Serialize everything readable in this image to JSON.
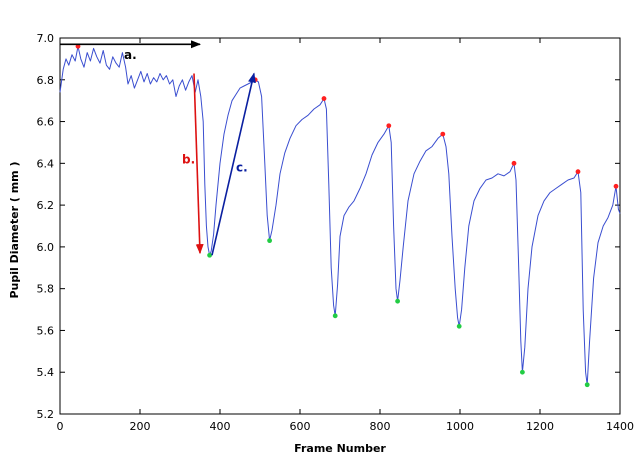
{
  "chart_data": {
    "type": "line",
    "title": "",
    "xlabel": "Frame Number",
    "ylabel": "Pupil Diameter  ( mm )",
    "xlim": [
      0,
      1400
    ],
    "ylim": [
      5.2,
      7.0
    ],
    "xticks": [
      0,
      200,
      400,
      600,
      800,
      1000,
      1200,
      1400
    ],
    "yticks": [
      5.2,
      5.4,
      5.6,
      5.8,
      6.0,
      6.2,
      6.4,
      6.6,
      6.8,
      7.0
    ],
    "grid": false,
    "line_color": "#3a4ed0",
    "series": [
      {
        "points": [
          [
            0,
            6.74
          ],
          [
            8,
            6.85
          ],
          [
            15,
            6.9
          ],
          [
            22,
            6.87
          ],
          [
            30,
            6.92
          ],
          [
            38,
            6.89
          ],
          [
            45,
            6.96
          ],
          [
            52,
            6.9
          ],
          [
            60,
            6.86
          ],
          [
            68,
            6.93
          ],
          [
            76,
            6.89
          ],
          [
            84,
            6.95
          ],
          [
            92,
            6.91
          ],
          [
            100,
            6.88
          ],
          [
            108,
            6.94
          ],
          [
            116,
            6.87
          ],
          [
            124,
            6.85
          ],
          [
            132,
            6.91
          ],
          [
            140,
            6.88
          ],
          [
            148,
            6.86
          ],
          [
            156,
            6.93
          ],
          [
            164,
            6.86
          ],
          [
            170,
            6.78
          ],
          [
            178,
            6.82
          ],
          [
            186,
            6.76
          ],
          [
            194,
            6.8
          ],
          [
            202,
            6.84
          ],
          [
            210,
            6.79
          ],
          [
            218,
            6.83
          ],
          [
            226,
            6.78
          ],
          [
            234,
            6.81
          ],
          [
            242,
            6.79
          ],
          [
            250,
            6.83
          ],
          [
            258,
            6.8
          ],
          [
            266,
            6.82
          ],
          [
            274,
            6.78
          ],
          [
            282,
            6.8
          ],
          [
            290,
            6.72
          ],
          [
            298,
            6.77
          ],
          [
            306,
            6.8
          ],
          [
            314,
            6.75
          ],
          [
            322,
            6.79
          ],
          [
            330,
            6.82
          ],
          [
            338,
            6.74
          ],
          [
            345,
            6.8
          ],
          [
            352,
            6.72
          ],
          [
            358,
            6.6
          ],
          [
            362,
            6.3
          ],
          [
            366,
            6.1
          ],
          [
            370,
            6.0
          ],
          [
            374,
            5.96
          ],
          [
            378,
            5.98
          ],
          [
            384,
            6.06
          ],
          [
            390,
            6.2
          ],
          [
            400,
            6.4
          ],
          [
            410,
            6.54
          ],
          [
            420,
            6.63
          ],
          [
            430,
            6.7
          ],
          [
            440,
            6.73
          ],
          [
            450,
            6.76
          ],
          [
            460,
            6.77
          ],
          [
            470,
            6.78
          ],
          [
            480,
            6.79
          ],
          [
            488,
            6.8
          ],
          [
            496,
            6.79
          ],
          [
            504,
            6.72
          ],
          [
            512,
            6.4
          ],
          [
            518,
            6.15
          ],
          [
            524,
            6.03
          ],
          [
            530,
            6.08
          ],
          [
            540,
            6.2
          ],
          [
            550,
            6.35
          ],
          [
            562,
            6.45
          ],
          [
            575,
            6.52
          ],
          [
            590,
            6.58
          ],
          [
            605,
            6.61
          ],
          [
            620,
            6.63
          ],
          [
            635,
            6.66
          ],
          [
            650,
            6.68
          ],
          [
            660,
            6.71
          ],
          [
            666,
            6.66
          ],
          [
            672,
            6.3
          ],
          [
            678,
            5.9
          ],
          [
            684,
            5.72
          ],
          [
            688,
            5.67
          ],
          [
            694,
            5.82
          ],
          [
            700,
            6.05
          ],
          [
            710,
            6.15
          ],
          [
            722,
            6.19
          ],
          [
            735,
            6.22
          ],
          [
            750,
            6.28
          ],
          [
            765,
            6.35
          ],
          [
            780,
            6.44
          ],
          [
            795,
            6.5
          ],
          [
            810,
            6.54
          ],
          [
            822,
            6.58
          ],
          [
            828,
            6.5
          ],
          [
            834,
            6.1
          ],
          [
            840,
            5.8
          ],
          [
            844,
            5.74
          ],
          [
            850,
            5.84
          ],
          [
            858,
            6.0
          ],
          [
            870,
            6.22
          ],
          [
            885,
            6.35
          ],
          [
            900,
            6.41
          ],
          [
            915,
            6.46
          ],
          [
            930,
            6.48
          ],
          [
            945,
            6.52
          ],
          [
            957,
            6.54
          ],
          [
            965,
            6.48
          ],
          [
            972,
            6.35
          ],
          [
            980,
            6.05
          ],
          [
            988,
            5.8
          ],
          [
            994,
            5.66
          ],
          [
            998,
            5.62
          ],
          [
            1004,
            5.7
          ],
          [
            1012,
            5.9
          ],
          [
            1022,
            6.1
          ],
          [
            1035,
            6.22
          ],
          [
            1050,
            6.28
          ],
          [
            1065,
            6.32
          ],
          [
            1080,
            6.33
          ],
          [
            1095,
            6.35
          ],
          [
            1110,
            6.34
          ],
          [
            1125,
            6.36
          ],
          [
            1135,
            6.4
          ],
          [
            1140,
            6.32
          ],
          [
            1146,
            5.95
          ],
          [
            1152,
            5.55
          ],
          [
            1156,
            5.4
          ],
          [
            1162,
            5.52
          ],
          [
            1170,
            5.8
          ],
          [
            1180,
            6.0
          ],
          [
            1195,
            6.15
          ],
          [
            1210,
            6.22
          ],
          [
            1225,
            6.26
          ],
          [
            1240,
            6.28
          ],
          [
            1255,
            6.3
          ],
          [
            1270,
            6.32
          ],
          [
            1285,
            6.33
          ],
          [
            1295,
            6.36
          ],
          [
            1302,
            6.26
          ],
          [
            1308,
            5.7
          ],
          [
            1314,
            5.4
          ],
          [
            1318,
            5.34
          ],
          [
            1324,
            5.55
          ],
          [
            1334,
            5.85
          ],
          [
            1345,
            6.02
          ],
          [
            1358,
            6.1
          ],
          [
            1370,
            6.14
          ],
          [
            1382,
            6.2
          ],
          [
            1390,
            6.29
          ],
          [
            1396,
            6.18
          ],
          [
            1400,
            6.16
          ]
        ]
      }
    ],
    "peaks": {
      "color": "#ff2020",
      "points": [
        [
          45,
          6.96
        ],
        [
          488,
          6.8
        ],
        [
          660,
          6.71
        ],
        [
          822,
          6.58
        ],
        [
          957,
          6.54
        ],
        [
          1135,
          6.4
        ],
        [
          1295,
          6.36
        ],
        [
          1390,
          6.29
        ]
      ]
    },
    "troughs": {
      "color": "#22cc44",
      "points": [
        [
          374,
          5.96
        ],
        [
          524,
          6.03
        ],
        [
          688,
          5.67
        ],
        [
          844,
          5.74
        ],
        [
          998,
          5.62
        ],
        [
          1156,
          5.4
        ],
        [
          1318,
          5.34
        ]
      ]
    },
    "annotations": [
      {
        "label": "a.",
        "color": "#000000",
        "arrow_from": [
          0,
          6.97
        ],
        "arrow_to": [
          350,
          6.97
        ],
        "label_at": [
          160,
          6.9
        ]
      },
      {
        "label": "b.",
        "color": "#dd1111",
        "arrow_from": [
          335,
          6.83
        ],
        "arrow_to": [
          350,
          5.97
        ],
        "label_at": [
          305,
          6.4
        ]
      },
      {
        "label": "c.",
        "color": "#0a1fa0",
        "arrow_from": [
          380,
          5.96
        ],
        "arrow_to": [
          485,
          6.83
        ],
        "label_at": [
          440,
          6.36
        ]
      }
    ]
  }
}
